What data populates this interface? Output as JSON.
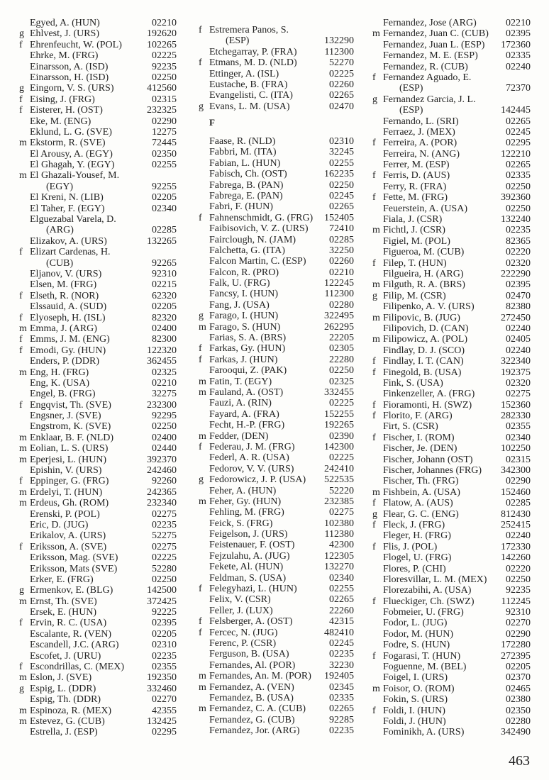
{
  "page_number": "463",
  "column1": [
    [
      "",
      "Egyed, A. (HUN)",
      "0",
      "2210"
    ],
    [
      "g",
      "Ehlvest, J. (URS)",
      "19",
      "2620"
    ],
    [
      "f",
      "Ehrenfeucht, W. (POL)",
      "10",
      "2265"
    ],
    [
      "",
      "Ehrke, M. (FRG)",
      "0",
      "2225"
    ],
    [
      "",
      "Einarsson, A. (ISD)",
      "9",
      "2235"
    ],
    [
      "",
      "Einarsson, H. (ISD)",
      "0",
      "2250"
    ],
    [
      "g",
      "Eingorn, V. S. (URS)",
      "41",
      "2560"
    ],
    [
      "f",
      "Eising, J. (FRG)",
      "0",
      "2315"
    ],
    [
      "f",
      "Eisterer, H. (OST)",
      "23",
      "2325"
    ],
    [
      "",
      "Eke, M. (ENG)",
      "0",
      "2290"
    ],
    [
      "",
      "Eklund, L. G. (SVE)",
      "1",
      "2275"
    ],
    [
      "m",
      "Ekstorm, R. (SVE)",
      "7",
      "2445"
    ],
    [
      "",
      "El Arousy, A. (EGY)",
      "0",
      "2350"
    ],
    [
      "",
      "El Ghagah, Y. (EGY)",
      "0",
      "2255"
    ],
    [
      "m",
      "El Ghazali-Yousef, M.",
      "",
      ""
    ],
    [
      "",
      "(EGY)",
      "9",
      "2255"
    ],
    [
      "",
      "El Kreni, N. (LIB)",
      "0",
      "2205"
    ],
    [
      "",
      "El Taher, F. (EGY)",
      "0",
      "2340"
    ],
    [
      "",
      "Elguezabal Varela, D.",
      "",
      ""
    ],
    [
      "",
      "(ARG)",
      "0",
      "2285"
    ],
    [
      "",
      "Elizakov, A. (URS)",
      "13",
      "2265"
    ],
    [
      "f",
      "Elizart Cardenas, H.",
      "",
      ""
    ],
    [
      "",
      "(CUB)",
      "9",
      "2265"
    ],
    [
      "",
      "Eljanov, V. (URS)",
      "9",
      "2310"
    ],
    [
      "",
      "Elsen, M. (FRG)",
      "0",
      "2215"
    ],
    [
      "f",
      "Elseth, R. (NOR)",
      "6",
      "2320"
    ],
    [
      "",
      "Elssauid, A. (SUD)",
      "0",
      "2205"
    ],
    [
      "f",
      "Elyoseph, H. (ISL)",
      "8",
      "2320"
    ],
    [
      "m",
      "Emma, J. (ARG)",
      "0",
      "2400"
    ],
    [
      "f",
      "Emms, J. M. (ENG)",
      "8",
      "2300"
    ],
    [
      "f",
      "Emodi, Gy. (HUN)",
      "12",
      "2320"
    ],
    [
      "",
      "Enders, P. (DDR)",
      "36",
      "2455"
    ],
    [
      "m",
      "Eng, H. (FRG)",
      "0",
      "2325"
    ],
    [
      "",
      "Eng, K. (USA)",
      "0",
      "2210"
    ],
    [
      "",
      "Engel, B. (FRG)",
      "3",
      "2275"
    ],
    [
      "f",
      "Engqvist, Th. (SVE)",
      "23",
      "2300"
    ],
    [
      "",
      "Engsner, J. (SVE)",
      "9",
      "2295"
    ],
    [
      "",
      "Engstrom, K. (SVE)",
      "0",
      "2250"
    ],
    [
      "m",
      "Enklaar, B. F. (NLD)",
      "0",
      "2400"
    ],
    [
      "m",
      "Eolian, L. S. (URS)",
      "0",
      "2440"
    ],
    [
      "m",
      "Eperjesi, L. (HUN)",
      "39",
      "2370"
    ],
    [
      "",
      "Epishin, V. (URS)",
      "24",
      "2460"
    ],
    [
      "f",
      "Eppinger, G. (FRG)",
      "9",
      "2260"
    ],
    [
      "m",
      "Erdelyi, T. (HUN)",
      "24",
      "2365"
    ],
    [
      "m",
      "Erdeus, Gh. (ROM)",
      "23",
      "2340"
    ],
    [
      "",
      "Erenski, P. (POL)",
      "0",
      "2275"
    ],
    [
      "",
      "Eric, D. (JUG)",
      "0",
      "2235"
    ],
    [
      "",
      "Erikalov, A. (URS)",
      "5",
      "2275"
    ],
    [
      "f",
      "Eriksson, A. (SVE)",
      "0",
      "2275"
    ],
    [
      "",
      "Eriksson, Mag. (SVE)",
      "0",
      "2225"
    ],
    [
      "",
      "Eriksson, Mats (SVE)",
      "5",
      "2280"
    ],
    [
      "",
      "Erker, E. (FRG)",
      "0",
      "2250"
    ],
    [
      "g",
      "Ermenkov, E. (BLG)",
      "14",
      "2500"
    ],
    [
      "m",
      "Ernst, Th. (SVE)",
      "37",
      "2425"
    ],
    [
      "",
      "Ersek, E. (HUN)",
      "9",
      "2225"
    ],
    [
      "f",
      "Ervin, R. C. (USA)",
      "0",
      "2395"
    ],
    [
      "",
      "Escalante, R. (VEN)",
      "0",
      "2205"
    ],
    [
      "",
      "Escandell, J.C. (ARG)",
      "0",
      "2310"
    ],
    [
      "",
      "Escofet, J. (URU)",
      "0",
      "2235"
    ],
    [
      "f",
      "Escondrillas, C. (MEX)",
      "0",
      "2355"
    ],
    [
      "m",
      "Eslon, J. (SVE)",
      "19",
      "2350"
    ],
    [
      "g",
      "Espig, L. (DDR)",
      "33",
      "2460"
    ],
    [
      "",
      "Espig, Th. (DDR)",
      "0",
      "2270"
    ],
    [
      "m",
      "Espinoza, R. (MEX)",
      "4",
      "2355"
    ],
    [
      "m",
      "Estevez, G. (CUB)",
      "13",
      "2425"
    ],
    [
      "",
      "Estrella, J. (ESP)",
      "0",
      "2295"
    ]
  ],
  "column2_before": [
    [
      "f",
      "Estremera Panos, S.",
      "",
      ""
    ],
    [
      "",
      "(ESP)",
      "13",
      "2290"
    ],
    [
      "",
      "Etchegarray, P. (FRA)",
      "11",
      "2300"
    ],
    [
      "f",
      "Etmans, M. D. (NLD)",
      "5",
      "2270"
    ],
    [
      "",
      "Ettinger, A. (ISL)",
      "0",
      "2225"
    ],
    [
      "",
      "Eustache, B. (FRA)",
      "0",
      "2260"
    ],
    [
      "",
      "Evangelisti, C. (ITA)",
      "0",
      "2265"
    ],
    [
      "g",
      "Evans, L. M. (USA)",
      "0",
      "2470"
    ]
  ],
  "section_heading": "F",
  "column2_after": [
    [
      "",
      "Faase, R. (NLD)",
      "0",
      "2310"
    ],
    [
      "",
      "Fabbri, M. (ITA)",
      "3",
      "2245"
    ],
    [
      "",
      "Fabian, L. (HUN)",
      "0",
      "2255"
    ],
    [
      "",
      "Fabisch, Ch. (OST)",
      "16",
      "2235"
    ],
    [
      "",
      "Fabrega, B. (PAN)",
      "0",
      "2250"
    ],
    [
      "",
      "Fabrega, E. (PAN)",
      "0",
      "2245"
    ],
    [
      "",
      "Fabri, F. (HUN)",
      "0",
      "2265"
    ],
    [
      "f",
      "Fahnenschmidt, G. (FRG)",
      "15",
      "2405"
    ],
    [
      "",
      "Faibisovich, V. Z. (URS)",
      "7",
      "2410"
    ],
    [
      "",
      "Fairclough, N. (JAM)",
      "0",
      "2285"
    ],
    [
      "",
      "Falchetta, G. (ITA)",
      "3",
      "2250"
    ],
    [
      "",
      "Falcon Martin, C. (ESP)",
      "0",
      "2260"
    ],
    [
      "",
      "Falcon, R. (PRO)",
      "0",
      "2210"
    ],
    [
      "",
      "Falk, U. (FRG)",
      "12",
      "2245"
    ],
    [
      "",
      "Fancsy, I. (HUN)",
      "11",
      "2300"
    ],
    [
      "",
      "Fang, J. (USA)",
      "0",
      "2280"
    ],
    [
      "g",
      "Farago, I. (HUN)",
      "32",
      "2495"
    ],
    [
      "m",
      "Farago, S. (HUN)",
      "26",
      "2295"
    ],
    [
      "",
      "Farias, S. A. (BRS)",
      "2",
      "2205"
    ],
    [
      "f",
      "Farkas, Gy. (HUN)",
      "0",
      "2305"
    ],
    [
      "f",
      "Farkas, J. (HUN)",
      "2",
      "2280"
    ],
    [
      "",
      "Farooqui, Z. (PAK)",
      "0",
      "2250"
    ],
    [
      "m",
      "Fatin, T. (EGY)",
      "0",
      "2325"
    ],
    [
      "m",
      "Fauland, A. (OST)",
      "33",
      "2455"
    ],
    [
      "",
      "Fauzi, A. (RIN)",
      "0",
      "2225"
    ],
    [
      "",
      "Fayard, A. (FRA)",
      "15",
      "2255"
    ],
    [
      "",
      "Fecht, H.-P. (FRG)",
      "19",
      "2265"
    ],
    [
      "m",
      "Fedder, (DEN)",
      "0",
      "2390"
    ],
    [
      "f",
      "Federau, J. M. (FRG)",
      "14",
      "2300"
    ],
    [
      "",
      "Federl, A. R. (USA)",
      "0",
      "2225"
    ],
    [
      "",
      "Fedorov, V. V. (URS)",
      "24",
      "2410"
    ],
    [
      "g",
      "Fedorowicz, J. P. (USA)",
      "52",
      "2535"
    ],
    [
      "",
      "Feher, A. (HUN)",
      "5",
      "2220"
    ],
    [
      "m",
      "Feher, Gy. (HUN)",
      "23",
      "2385"
    ],
    [
      "",
      "Fehling, M. (FRG)",
      "0",
      "2275"
    ],
    [
      "",
      "Feick, S. (FRG)",
      "10",
      "2380"
    ],
    [
      "",
      "Feigelson, J. (URS)",
      "11",
      "2380"
    ],
    [
      "",
      "Feistenauer, F. (OST)",
      "4",
      "2300"
    ],
    [
      "",
      "Fejzulahu, A. (JUG)",
      "12",
      "2305"
    ],
    [
      "",
      "Fekete, Al. (HUN)",
      "13",
      "2270"
    ],
    [
      "",
      "Feldman, S. (USA)",
      "0",
      "2340"
    ],
    [
      "f",
      "Felegyhazi, L. (HUN)",
      "0",
      "2255"
    ],
    [
      "",
      "Felix, V. (CSR)",
      "0",
      "2265"
    ],
    [
      "",
      "Feller, J. (LUX)",
      "2",
      "2260"
    ],
    [
      "f",
      "Felsberger, A. (OST)",
      "4",
      "2315"
    ],
    [
      "f",
      "Fercec, N. (JUG)",
      "48",
      "2410"
    ],
    [
      "",
      "Ferenc, P. (CSR)",
      "0",
      "2245"
    ],
    [
      "",
      "Ferguson, B. (USA)",
      "0",
      "2235"
    ],
    [
      "",
      "Fernandes, Al. (POR)",
      "3",
      "2230"
    ],
    [
      "m",
      "Fernandes, An. M. (POR)",
      "19",
      "2405"
    ],
    [
      "m",
      "Fernandez, A. (VEN)",
      "0",
      "2345"
    ],
    [
      "",
      "Fernandez, B. (USA)",
      "0",
      "2335"
    ],
    [
      "m",
      "Fernandez, C. A. (CUB)",
      "0",
      "2265"
    ],
    [
      "",
      "Fernandez, G. (CUB)",
      "9",
      "2285"
    ],
    [
      "",
      "Fernandez, Jor. (ARG)",
      "0",
      "2235"
    ]
  ],
  "column3": [
    [
      "",
      "Fernandez, Jose (ARG)",
      "0",
      "2210"
    ],
    [
      "m",
      "Fernandez, Juan C. (CUB)",
      "0",
      "2395"
    ],
    [
      "",
      "Fernandez, Juan L. (ESP)",
      "17",
      "2360"
    ],
    [
      "",
      "Fernandez, M. E. (ESP)",
      "0",
      "2335"
    ],
    [
      "",
      "Fernandez, R. (CUB)",
      "0",
      "2240"
    ],
    [
      "f",
      "Fernandez Aguado, E.",
      "",
      ""
    ],
    [
      "",
      "(ESP)",
      "7",
      "2370"
    ],
    [
      "g",
      "Fernandez Garcia, J. L.",
      "",
      ""
    ],
    [
      "",
      "(ESP)",
      "14",
      "2445"
    ],
    [
      "",
      "Fernando, L. (SRI)",
      "0",
      "2265"
    ],
    [
      "",
      "Ferraez, J. (MEX)",
      "0",
      "2245"
    ],
    [
      "f",
      "Ferreira, A. (POR)",
      "0",
      "2295"
    ],
    [
      "",
      "Ferreira, N. (ANG)",
      "12",
      "2210"
    ],
    [
      "",
      "Ferrer, M. (ESP)",
      "0",
      "2265"
    ],
    [
      "f",
      "Ferris, D. (AUS)",
      "0",
      "2335"
    ],
    [
      "",
      "Ferry, R. (FRA)",
      "0",
      "2250"
    ],
    [
      "f",
      "Fette, M. (FRG)",
      "39",
      "2360"
    ],
    [
      "",
      "Feuerstein, A. (USA)",
      "0",
      "2250"
    ],
    [
      "",
      "Fiala, J. (CSR)",
      "13",
      "2240"
    ],
    [
      "m",
      "Fichtl, J. (CSR)",
      "0",
      "2235"
    ],
    [
      "",
      "Figiel, M. (POL)",
      "8",
      "2365"
    ],
    [
      "",
      "Figueroa, M. (CUB)",
      "0",
      "2220"
    ],
    [
      "f",
      "Filep, T. (HUN)",
      "0",
      "2320"
    ],
    [
      "",
      "Filgueira, H. (ARG)",
      "22",
      "2290"
    ],
    [
      "m",
      "Filguth, R. A. (BRS)",
      "0",
      "2395"
    ],
    [
      "g",
      "Filip, M. (CSR)",
      "0",
      "2470"
    ],
    [
      "",
      "Filipenko, A. V. (URS)",
      "8",
      "2380"
    ],
    [
      "m",
      "Filipovic, B. (JUG)",
      "27",
      "2450"
    ],
    [
      "",
      "Filipovich, D. (CAN)",
      "0",
      "2240"
    ],
    [
      "m",
      "Filipowicz, A. (POL)",
      "0",
      "2405"
    ],
    [
      "",
      "Findlay, D. J. (SCO)",
      "0",
      "2240"
    ],
    [
      "f",
      "Findlay, I. T. (CAN)",
      "32",
      "2340"
    ],
    [
      "f",
      "Finegold, B. (USA)",
      "19",
      "2375"
    ],
    [
      "",
      "Fink, S. (USA)",
      "0",
      "2320"
    ],
    [
      "",
      "Finkenzeller, A. (FRG)",
      "0",
      "2275"
    ],
    [
      "f",
      "Fioramonti, H. (SWZ)",
      "15",
      "2360"
    ],
    [
      "f",
      "Florito, F. (ARG)",
      "28",
      "2330"
    ],
    [
      "",
      "Firt, S. (CSR)",
      "0",
      "2355"
    ],
    [
      "f",
      "Fischer, I. (ROM)",
      "0",
      "2340"
    ],
    [
      "",
      "Fischer, Je. (DEN)",
      "10",
      "2250"
    ],
    [
      "",
      "Fischer, Johann (OST)",
      "0",
      "2315"
    ],
    [
      "",
      "Fischer, Johannes (FRG)",
      "34",
      "2300"
    ],
    [
      "",
      "Fischer, Th. (FRG)",
      "0",
      "2290"
    ],
    [
      "m",
      "Fishbein, A. (USA)",
      "15",
      "2460"
    ],
    [
      "f",
      "Flatow, A. (AUS)",
      "0",
      "2285"
    ],
    [
      "g",
      "Flear, G. C. (ENG)",
      "81",
      "2430"
    ],
    [
      "f",
      "Fleck, J. (FRG)",
      "25",
      "2415"
    ],
    [
      "",
      "Fleger, H. (FRG)",
      "0",
      "2240"
    ],
    [
      "f",
      "Flis, J. (POL)",
      "17",
      "2330"
    ],
    [
      "",
      "Flogel, U. (FRG)",
      "14",
      "2260"
    ],
    [
      "",
      "Flores, P. (CHI)",
      "0",
      "2220"
    ],
    [
      "",
      "Floresvillar, L. M. (MEX)",
      "0",
      "2250"
    ],
    [
      "",
      "Florezabihi, A. (USA)",
      "9",
      "2235"
    ],
    [
      "f",
      "Flueckiger, Ch. (SWZ)",
      "11",
      "2245"
    ],
    [
      "",
      "Fobmeier, U. (FRG)",
      "9",
      "2310"
    ],
    [
      "",
      "Fodor, L. (JUG)",
      "0",
      "2270"
    ],
    [
      "",
      "Fodor, M. (HUN)",
      "0",
      "2290"
    ],
    [
      "",
      "Fodre, S. (HUN)",
      "17",
      "2280"
    ],
    [
      "f",
      "Fogarasi, T. (HUN)",
      "27",
      "2395"
    ],
    [
      "",
      "Foguenne, M. (BEL)",
      "0",
      "2205"
    ],
    [
      "",
      "Foigel, I. (URS)",
      "0",
      "2370"
    ],
    [
      "m",
      "Foisor, O. (ROM)",
      "0",
      "2465"
    ],
    [
      "",
      "Fokin, S. (URS)",
      "0",
      "2380"
    ],
    [
      "f",
      "Foldi, I. (HUN)",
      "0",
      "2350"
    ],
    [
      "",
      "Foldi, J. (HUN)",
      "0",
      "2280"
    ],
    [
      "",
      "Fominikh, A. (URS)",
      "34",
      "2490"
    ]
  ]
}
